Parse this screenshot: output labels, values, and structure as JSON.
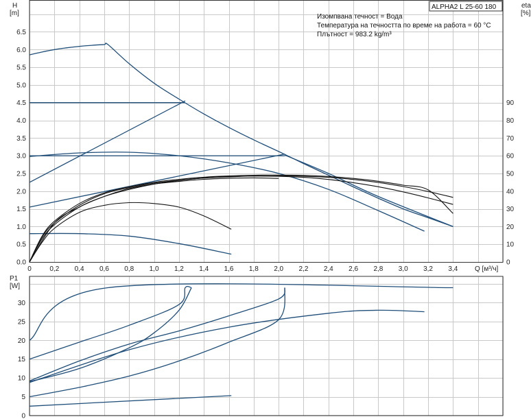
{
  "colors": {
    "curve": "#1f4e79",
    "eff": "#111111",
    "grid": "#c9c9c9",
    "axis": "#333333"
  },
  "chart_data": [
    {
      "type": "line",
      "name": "head",
      "model_label": "ALPHA2 L 25-60 180",
      "annotations": [
        "Изомпвана течност = Вода",
        "Температура на течността по време на работа = 60 °C",
        "Плътност = 983.2 kg/m³"
      ],
      "ylabel_line1": "H",
      "ylabel_line2": "[m]",
      "y2label_line1": "eta",
      "y2label_line2": "[%]",
      "xlabel": "Q [м³/ч]",
      "xlim": [
        0,
        3.8
      ],
      "ylim": [
        0,
        7.4
      ],
      "y2lim": [
        0,
        148
      ],
      "x_ticks": [
        "0",
        "0,2",
        "0,4",
        "0,6",
        "0,8",
        "1,0",
        "1,2",
        "1,4",
        "1,6",
        "1,8",
        "2,0",
        "2,2",
        "2,4",
        "2,6",
        "2,8",
        "3,0",
        "3,2",
        "3,4"
      ],
      "y_ticks": [
        "0.0",
        "0.5",
        "1.0",
        "1.5",
        "2.0",
        "2.5",
        "3.0",
        "3.5",
        "4.0",
        "4.5",
        "5.0",
        "5.5",
        "6.0",
        "6.5"
      ],
      "y2_ticks": [
        "0",
        "10",
        "20",
        "30",
        "40",
        "50",
        "60",
        "70",
        "80",
        "90"
      ],
      "series": [
        {
          "kind": "head",
          "x": [
            0,
            0.1,
            0.2,
            0.3,
            0.4,
            0.5,
            0.6,
            0.63,
            0.8,
            1.0,
            1.2,
            1.4,
            1.6,
            1.8,
            2.0,
            2.2,
            2.4,
            2.6,
            2.8,
            3.0,
            3.2,
            3.4
          ],
          "y": [
            5.85,
            5.93,
            6.0,
            6.05,
            6.09,
            6.12,
            6.14,
            6.14,
            5.6,
            5.05,
            4.6,
            4.18,
            3.8,
            3.45,
            3.12,
            2.78,
            2.45,
            2.12,
            1.8,
            1.5,
            1.25,
            1.0
          ]
        },
        {
          "kind": "head",
          "x": [
            0,
            1.25
          ],
          "y": [
            4.5,
            4.5
          ]
        },
        {
          "kind": "head",
          "x": [
            0,
            1.25
          ],
          "y": [
            2.25,
            4.55
          ]
        },
        {
          "kind": "head",
          "x": [
            0,
            0.4,
            0.8,
            1.2,
            1.6,
            2.0,
            2.4,
            2.8,
            3.17
          ],
          "y": [
            2.98,
            3.08,
            3.1,
            3.0,
            2.8,
            2.5,
            2.05,
            1.45,
            0.87
          ]
        },
        {
          "kind": "head",
          "x": [
            0,
            2.05
          ],
          "y": [
            3.0,
            3.0
          ]
        },
        {
          "kind": "head",
          "x": [
            0,
            2.05
          ],
          "y": [
            1.55,
            3.05
          ]
        },
        {
          "kind": "head",
          "x": [
            2.05,
            2.4,
            2.8,
            3.4
          ],
          "y": [
            3.02,
            2.5,
            1.85,
            1.0
          ]
        },
        {
          "kind": "head",
          "x": [
            0,
            0.4,
            0.8,
            1.2,
            1.62
          ],
          "y": [
            0.8,
            0.8,
            0.73,
            0.52,
            0.22
          ]
        },
        {
          "kind": "eta",
          "x": [
            0,
            0.1,
            0.2,
            0.4,
            0.6,
            0.8,
            1.0,
            1.2,
            1.4,
            1.62
          ],
          "y": [
            0,
            11,
            19,
            28,
            32,
            33.5,
            33,
            31,
            26,
            18.5
          ]
        },
        {
          "kind": "eta",
          "x": [
            0,
            0.1,
            0.2,
            0.4,
            0.6,
            0.8,
            1.0,
            1.2,
            1.4,
            1.6,
            1.8,
            2.0,
            2.2,
            2.4,
            2.6,
            2.8,
            3.0,
            3.2,
            3.4
          ],
          "y": [
            0,
            13,
            21,
            31,
            37,
            41,
            44,
            46,
            47.5,
            48.3,
            48.5,
            48.4,
            47.8,
            46.6,
            44.8,
            42.5,
            39.6,
            36.2,
            32.5
          ]
        },
        {
          "kind": "eta",
          "x": [
            0,
            0.1,
            0.2,
            0.4,
            0.6,
            0.8,
            1.0,
            1.2,
            1.4,
            1.6,
            1.8,
            2.0,
            2.2,
            2.4,
            2.6,
            2.8,
            3.0,
            3.2,
            3.4
          ],
          "y": [
            0,
            14,
            22,
            32,
            38.5,
            42,
            44.5,
            46.2,
            47.4,
            48.1,
            48.5,
            48.6,
            48.4,
            47.8,
            46.6,
            44.9,
            42.6,
            39.8,
            36.5
          ]
        },
        {
          "kind": "eta",
          "x": [
            0,
            0.1,
            0.2,
            0.4,
            0.6,
            0.8,
            1.0,
            1.2,
            1.4,
            1.6,
            1.8,
            2.0,
            2.2,
            2.4,
            2.6,
            2.8,
            3.0,
            3.2,
            3.4
          ],
          "y": [
            0,
            14.5,
            23,
            33,
            39,
            42.5,
            45,
            46.7,
            47.9,
            48.6,
            49,
            49.1,
            48.9,
            48.3,
            47.2,
            45.6,
            43.4,
            40.7,
            27.4
          ]
        },
        {
          "kind": "eta",
          "x": [
            0,
            0.2,
            0.4,
            0.6,
            0.8,
            1.0,
            1.2,
            1.4,
            1.6,
            1.8,
            2.0
          ],
          "y": [
            0,
            22,
            31,
            37,
            41.5,
            44,
            45.5,
            46.7,
            47.3,
            47.5,
            47.2
          ]
        }
      ]
    },
    {
      "type": "line",
      "name": "power",
      "ylabel_line1": "P1",
      "ylabel_line2": "[W]",
      "xlim": [
        0,
        3.8
      ],
      "ylim": [
        0,
        37
      ],
      "y_ticks": [
        "0",
        "5",
        "10",
        "15",
        "20",
        "25",
        "30"
      ],
      "series": [
        {
          "x": [
            0,
            0.63,
            3.4
          ],
          "y": [
            20,
            34,
            34
          ]
        },
        {
          "x": [
            0,
            0.4,
            0.8,
            1.2,
            1.25,
            1.3
          ],
          "y": [
            15,
            19.5,
            24,
            29.5,
            34,
            34
          ]
        },
        {
          "x": [
            0,
            0.4,
            0.8,
            1.0,
            1.2,
            1.3
          ],
          "y": [
            9,
            12.5,
            18,
            22,
            28,
            34
          ]
        },
        {
          "x": [
            0,
            0.4,
            0.8,
            1.2,
            1.6,
            2.0,
            2.05
          ],
          "y": [
            9.2,
            14.5,
            19,
            22.5,
            26.5,
            31,
            34
          ]
        },
        {
          "x": [
            0,
            0.4,
            0.8,
            1.2,
            1.6,
            2.0,
            2.05
          ],
          "y": [
            5,
            7.5,
            10.5,
            14.5,
            19.5,
            25.5,
            34
          ]
        },
        {
          "x": [
            0,
            0.8,
            1.6,
            2.4,
            2.8,
            3.17
          ],
          "y": [
            8.8,
            17.5,
            23.5,
            27.2,
            28,
            27.6
          ]
        },
        {
          "x": [
            0,
            1.62
          ],
          "y": [
            2.5,
            5.3
          ]
        }
      ]
    }
  ]
}
